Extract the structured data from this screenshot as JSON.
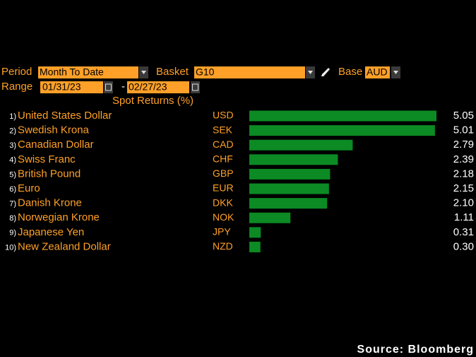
{
  "controls": {
    "period_label": "Period",
    "period": "Month To Date",
    "basket_label": "Basket",
    "basket": "G10",
    "base_label": "Base",
    "base": "AUD",
    "range_label": "Range",
    "range_start": "01/31/23",
    "range_sep": "-",
    "range_end": "02/27/23"
  },
  "chart_data": {
    "type": "bar",
    "title": "Spot Returns (%)",
    "ranks": [
      "1)",
      "2)",
      "3)",
      "4)",
      "5)",
      "6)",
      "7)",
      "8)",
      "9)",
      "10)"
    ],
    "categories": [
      "United States Dollar",
      "Swedish Krona",
      "Canadian Dollar",
      "Swiss Franc",
      "British Pound",
      "Euro",
      "Danish Krone",
      "Norwegian Krone",
      "Japanese Yen",
      "New Zealand Dollar"
    ],
    "codes": [
      "USD",
      "SEK",
      "CAD",
      "CHF",
      "GBP",
      "EUR",
      "DKK",
      "NOK",
      "JPY",
      "NZD"
    ],
    "values": [
      5.05,
      5.01,
      2.79,
      2.39,
      2.18,
      2.15,
      2.1,
      1.11,
      0.31,
      0.3
    ],
    "value_labels": [
      "5.05",
      "5.01",
      "2.79",
      "2.39",
      "2.18",
      "2.15",
      "2.10",
      "1.11",
      "0.31",
      "0.30"
    ],
    "color": "#0c8a24"
  },
  "source": "Source: Bloomberg"
}
